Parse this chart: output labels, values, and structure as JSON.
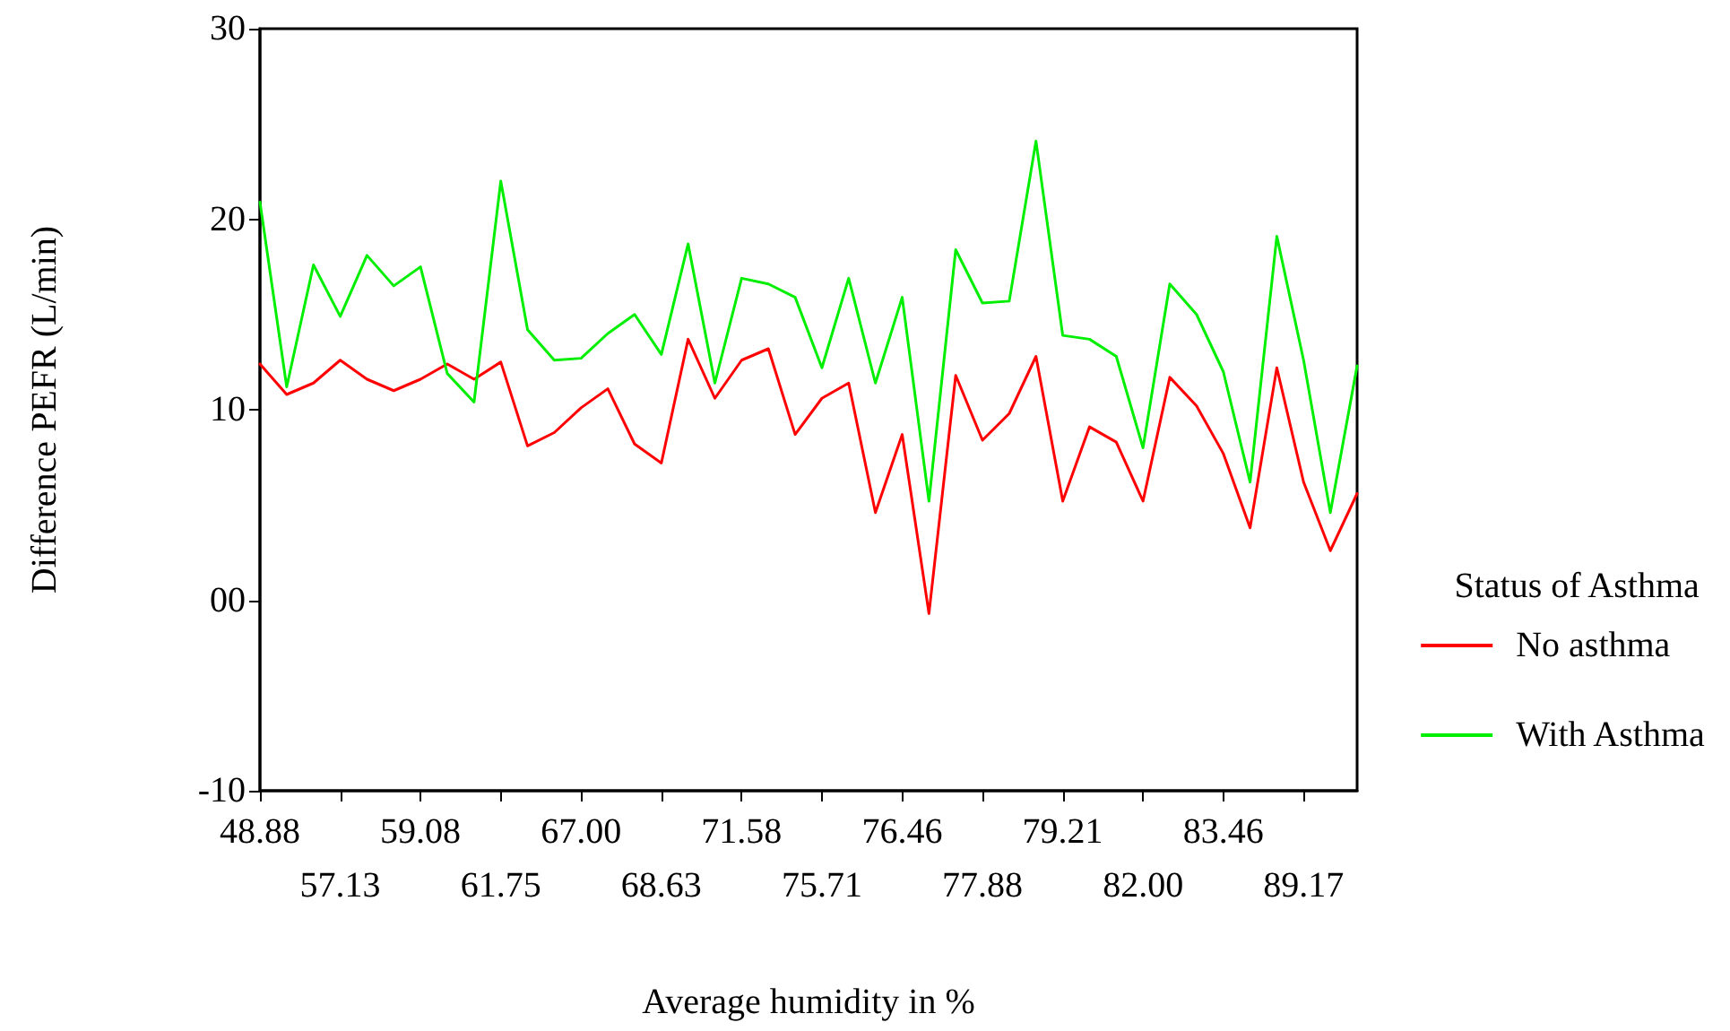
{
  "chart_data": {
    "type": "line",
    "xlabel": "Average humidity in %",
    "ylabel": "Difference PEFR (L/min)",
    "legend_title": "Status of Asthma",
    "categories": [
      "48.88",
      null,
      null,
      "57.13",
      null,
      null,
      "59.08",
      null,
      null,
      "61.75",
      null,
      null,
      "67.00",
      null,
      null,
      "68.63",
      null,
      null,
      "71.58",
      null,
      null,
      "75.71",
      null,
      null,
      "76.46",
      null,
      null,
      "77.88",
      null,
      null,
      "79.21",
      null,
      null,
      "82.00",
      null,
      null,
      "83.46",
      null,
      null,
      "89.17",
      null,
      null
    ],
    "series": [
      {
        "name": "No asthma",
        "color": "#ff0000",
        "values": [
          12.4,
          10.8,
          11.4,
          12.6,
          11.6,
          11.0,
          11.6,
          12.4,
          11.6,
          12.5,
          8.1,
          8.8,
          10.1,
          11.1,
          8.2,
          7.2,
          13.7,
          10.6,
          12.6,
          13.2,
          8.7,
          10.6,
          11.4,
          4.6,
          8.7,
          -0.7,
          11.8,
          8.4,
          9.8,
          12.8,
          5.2,
          9.1,
          8.3,
          5.2,
          11.7,
          10.2,
          7.7,
          3.8,
          12.2,
          6.2,
          2.6,
          5.6
        ]
      },
      {
        "name": "With Asthma",
        "color": "#00ee00",
        "values": [
          20.9,
          11.2,
          17.6,
          14.9,
          18.1,
          16.5,
          17.5,
          11.9,
          10.4,
          22.0,
          14.2,
          12.6,
          12.7,
          14.0,
          15.0,
          12.9,
          18.7,
          11.4,
          16.9,
          16.6,
          15.9,
          12.2,
          16.9,
          11.4,
          15.9,
          5.2,
          18.4,
          15.6,
          15.7,
          24.1,
          13.9,
          13.7,
          12.8,
          8.0,
          16.6,
          15.0,
          12.0,
          6.2,
          19.1,
          12.6,
          4.6,
          12.3
        ]
      }
    ],
    "ylim": [
      -10,
      30
    ],
    "yticks": [
      -10,
      {
        "value": 0,
        "label": "00"
      },
      10,
      20,
      30
    ],
    "grid": false,
    "legend": "right",
    "marker": "none",
    "line_style": "solid"
  }
}
